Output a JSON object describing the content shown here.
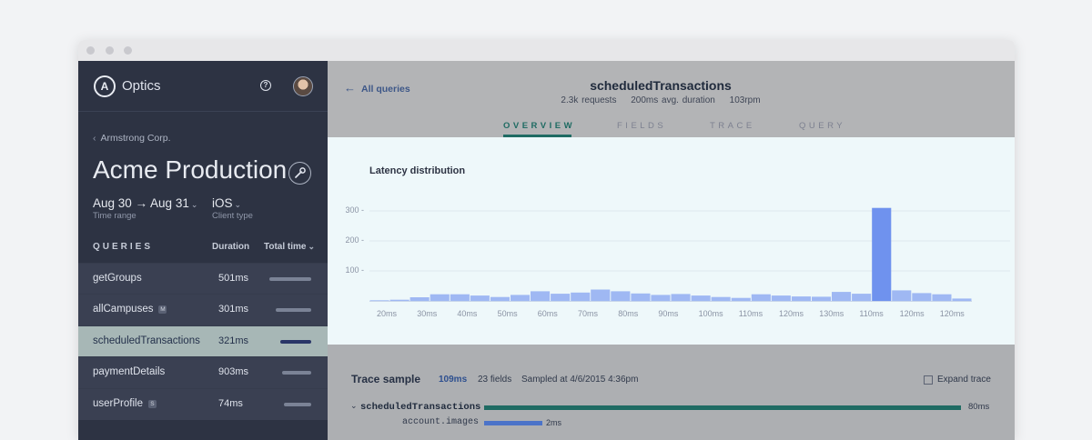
{
  "app": {
    "name": "Optics",
    "logo_letter": "A"
  },
  "sidebar": {
    "org": "Armstrong Corp.",
    "project": "Acme Production",
    "time_range": {
      "value": "Aug 30 → Aug 31",
      "label": "Time range"
    },
    "client_type": {
      "value": "iOS",
      "label": "Client type"
    },
    "columns": {
      "queries": "QUERIES",
      "duration": "Duration",
      "total_time": "Total time"
    },
    "queries": [
      {
        "name": "getGroups",
        "badge": "",
        "duration": "501ms",
        "total_fraction": 1.0,
        "selected": false
      },
      {
        "name": "allCampuses",
        "badge": "M",
        "duration": "301ms",
        "total_fraction": 0.85,
        "selected": false
      },
      {
        "name": "scheduledTransactions",
        "badge": "",
        "duration": "321ms",
        "total_fraction": 0.73,
        "selected": true
      },
      {
        "name": "paymentDetails",
        "badge": "",
        "duration": "903ms",
        "total_fraction": 0.7,
        "selected": false
      },
      {
        "name": "userProfile",
        "badge": "S",
        "duration": "74ms",
        "total_fraction": 0.65,
        "selected": false
      }
    ]
  },
  "main": {
    "back_label": "All queries",
    "query_title": "scheduledTransactions",
    "stats": {
      "requests": "2.3k requests",
      "avg_duration": "200ms avg. duration",
      "rpm": "103rpm"
    },
    "tabs": [
      {
        "label": "OVERVIEW",
        "active": true
      },
      {
        "label": "FIELDS",
        "active": false
      },
      {
        "label": "TRACE",
        "active": false
      },
      {
        "label": "QUERY",
        "active": false
      }
    ]
  },
  "chart_data": {
    "type": "bar",
    "title": "Latency distribution",
    "ylim": [
      0,
      340
    ],
    "yticks": [
      100,
      200,
      300
    ],
    "xtick_labels": [
      "20ms",
      "30ms",
      "40ms",
      "50ms",
      "60ms",
      "70ms",
      "80ms",
      "90ms",
      "100ms",
      "110ms",
      "120ms",
      "130ms",
      "110ms",
      "120ms",
      "120ms"
    ],
    "values": [
      2,
      4,
      12,
      22,
      22,
      18,
      13,
      20,
      32,
      24,
      28,
      38,
      32,
      25,
      20,
      23,
      18,
      13,
      10,
      22,
      18,
      15,
      14,
      30,
      24,
      310,
      35,
      26,
      22,
      8
    ],
    "grid": true,
    "bar_color": "#9fb8f3",
    "peak_color": "#6f92ee"
  },
  "trace": {
    "title": "Trace sample",
    "duration": "109ms",
    "fields": "23 fields",
    "sampled_at": "Sampled at 4/6/2015 4:36pm",
    "expand_label": "Expand trace",
    "rows": [
      {
        "name": "scheduledTransactions",
        "time": "80ms",
        "fraction": 1.0
      },
      {
        "name": "account.images",
        "time": "2ms",
        "fraction": 0.12
      }
    ]
  },
  "colors": {
    "accent": "#1f6b63",
    "sidebar_bg": "#2d3343",
    "selection": "#a7b7b6",
    "link": "#3d5788"
  }
}
